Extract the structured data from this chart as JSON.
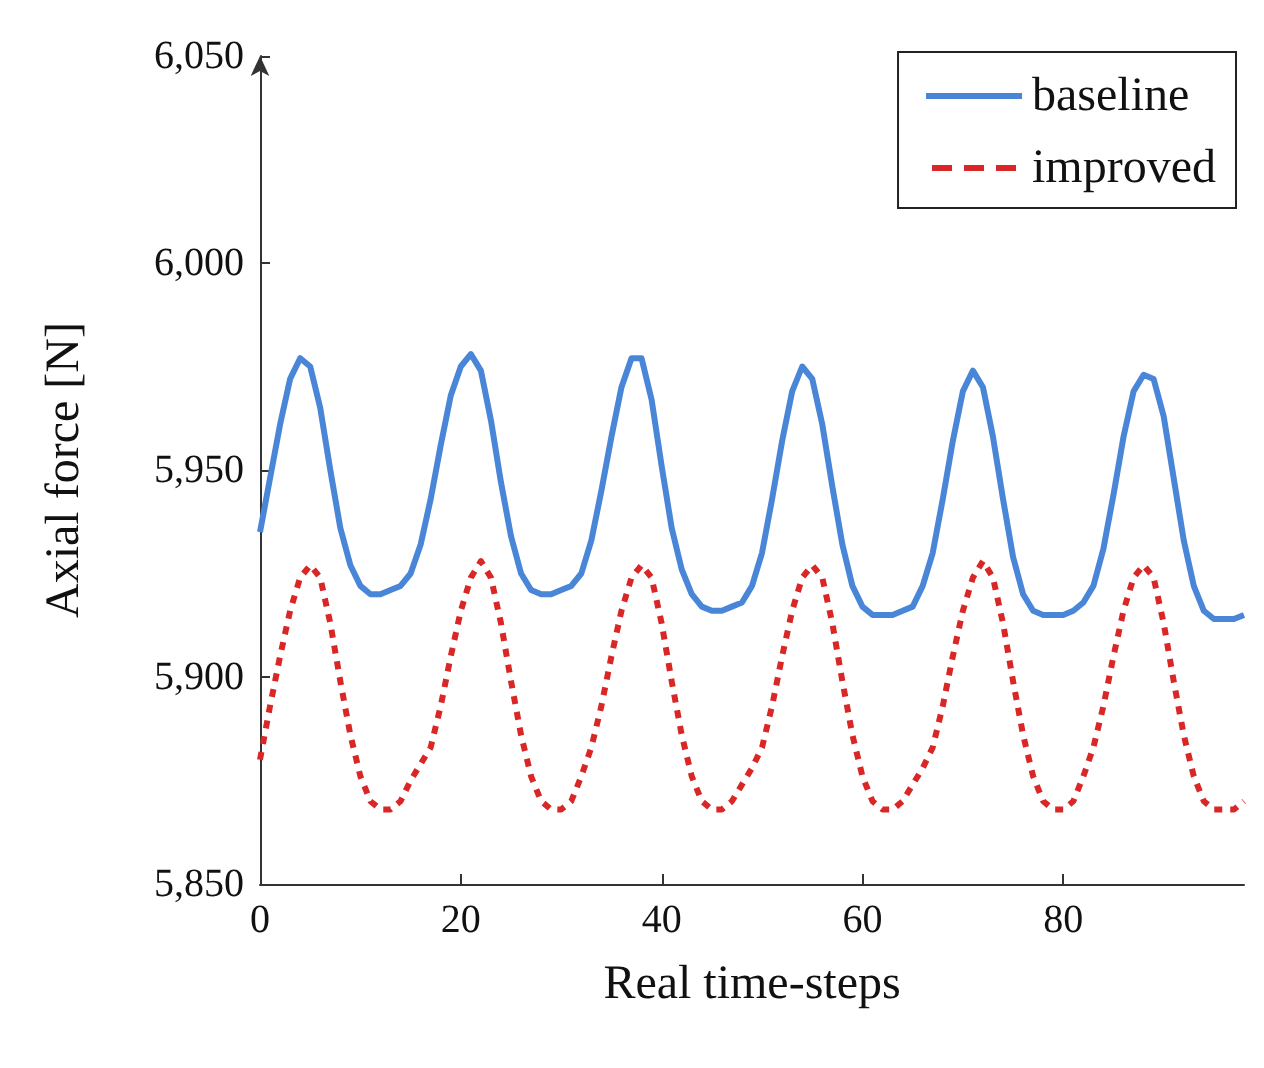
{
  "chart_data": {
    "type": "line",
    "xlabel": "Real time-steps",
    "ylabel": "Axial force [N]",
    "x": [
      0,
      1,
      2,
      3,
      4,
      5,
      6,
      7,
      8,
      9,
      10,
      11,
      12,
      13,
      14,
      15,
      16,
      17,
      18,
      19,
      20,
      21,
      22,
      23,
      24,
      25,
      26,
      27,
      28,
      29,
      30,
      31,
      32,
      33,
      34,
      35,
      36,
      37,
      38,
      39,
      40,
      41,
      42,
      43,
      44,
      45,
      46,
      47,
      48,
      49,
      50,
      51,
      52,
      53,
      54,
      55,
      56,
      57,
      58,
      59,
      60,
      61,
      62,
      63,
      64,
      65,
      66,
      67,
      68,
      69,
      70,
      71,
      72,
      73,
      74,
      75,
      76,
      77,
      78,
      79,
      80,
      81,
      82,
      83,
      84,
      85,
      86,
      87,
      88,
      89,
      90,
      91,
      92,
      93,
      94,
      95,
      96,
      97,
      98
    ],
    "series": [
      {
        "name": "baseline",
        "color": "#4a86d8",
        "line_style": "solid",
        "values": [
          5935,
          5948,
          5961,
          5972,
          5977,
          5975,
          5965,
          5950,
          5936,
          5927,
          5922,
          5920,
          5920,
          5921,
          5922,
          5925,
          5932,
          5943,
          5956,
          5968,
          5975,
          5978,
          5974,
          5962,
          5947,
          5934,
          5925,
          5921,
          5920,
          5920,
          5921,
          5922,
          5925,
          5933,
          5945,
          5958,
          5970,
          5977,
          5977,
          5967,
          5951,
          5936,
          5926,
          5920,
          5917,
          5916,
          5916,
          5917,
          5918,
          5922,
          5930,
          5943,
          5957,
          5969,
          5975,
          5972,
          5961,
          5946,
          5932,
          5922,
          5917,
          5915,
          5915,
          5915,
          5916,
          5917,
          5922,
          5930,
          5943,
          5957,
          5969,
          5974,
          5970,
          5958,
          5943,
          5929,
          5920,
          5916,
          5915,
          5915,
          5915,
          5916,
          5918,
          5922,
          5931,
          5944,
          5958,
          5969,
          5973,
          5972,
          5963,
          5948,
          5933,
          5922,
          5916,
          5914,
          5914,
          5914,
          5915
        ]
      },
      {
        "name": "improved",
        "color": "#d92626",
        "line_style": "dashed",
        "values": [
          5880,
          5893,
          5905,
          5916,
          5924,
          5927,
          5924,
          5913,
          5899,
          5886,
          5876,
          5870,
          5868,
          5868,
          5870,
          5875,
          5879,
          5883,
          5893,
          5905,
          5916,
          5924,
          5928,
          5924,
          5913,
          5899,
          5886,
          5876,
          5870,
          5868,
          5868,
          5870,
          5876,
          5883,
          5893,
          5905,
          5916,
          5924,
          5927,
          5924,
          5913,
          5899,
          5886,
          5876,
          5870,
          5868,
          5868,
          5870,
          5874,
          5878,
          5883,
          5893,
          5905,
          5916,
          5924,
          5927,
          5924,
          5913,
          5899,
          5886,
          5876,
          5870,
          5868,
          5868,
          5870,
          5874,
          5878,
          5883,
          5893,
          5905,
          5916,
          5924,
          5928,
          5924,
          5913,
          5899,
          5886,
          5876,
          5870,
          5868,
          5868,
          5870,
          5876,
          5883,
          5893,
          5905,
          5916,
          5924,
          5927,
          5924,
          5913,
          5899,
          5886,
          5876,
          5870,
          5868,
          5868,
          5868,
          5870
        ]
      }
    ],
    "xlim": [
      0,
      98
    ],
    "xticks": [
      0,
      20,
      40,
      60,
      80
    ],
    "ylim": [
      5850,
      6050
    ],
    "yticks": [
      {
        "value": 5850,
        "label": "5,850"
      },
      {
        "value": 5900,
        "label": "5,900"
      },
      {
        "value": 5950,
        "label": "5,950"
      },
      {
        "value": 6000,
        "label": "6,000"
      },
      {
        "value": 6050,
        "label": "6,050"
      }
    ],
    "grid": false,
    "legend": "top right",
    "marker": "none"
  }
}
